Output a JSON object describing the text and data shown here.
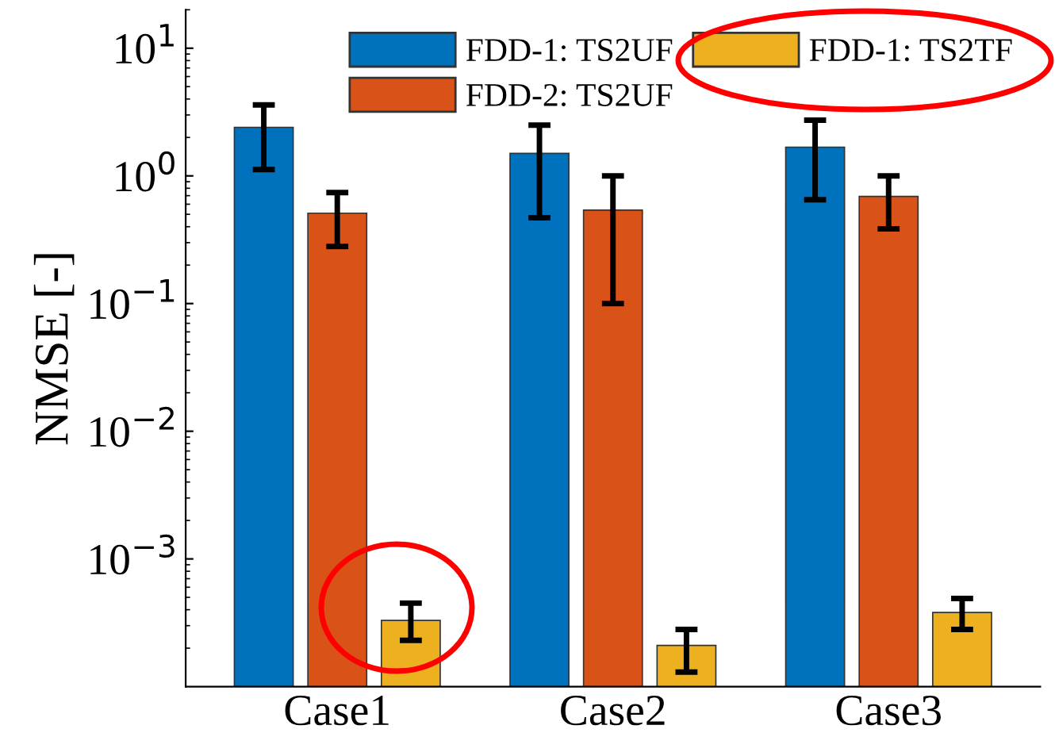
{
  "chart_data": {
    "type": "bar",
    "ylabel": "NMSE [-]",
    "categories": [
      "Case1",
      "Case2",
      "Case3"
    ],
    "series": [
      {
        "name": "FDD-1: TS2UF",
        "color": "#0072bd",
        "values": [
          2.4,
          1.5,
          1.68
        ],
        "errors": [
          [
            1.12,
            3.6
          ],
          [
            0.47,
            2.5
          ],
          [
            0.65,
            2.73
          ]
        ]
      },
      {
        "name": "FDD-2: TS2UF",
        "color": "#d95319",
        "values": [
          0.51,
          0.54,
          0.69
        ],
        "errors": [
          [
            0.28,
            0.74
          ],
          [
            0.1,
            1.0
          ],
          [
            0.385,
            1.0
          ]
        ]
      },
      {
        "name": "FDD-1: TS2TF",
        "color": "#edb120",
        "values": [
          0.00033,
          0.00021,
          0.00038
        ],
        "errors": [
          [
            0.00023,
            0.00045
          ],
          [
            0.00013,
            0.00028
          ],
          [
            0.00028,
            0.00049
          ]
        ]
      }
    ],
    "log": true,
    "ylim": [
      0.0001,
      20
    ],
    "yticks": [
      {
        "value": 0.001,
        "label": "10$^{−3}$"
      },
      {
        "value": 0.01,
        "label": "10$^{−2}$"
      },
      {
        "value": 0.1,
        "label": "10$^{−1}$"
      },
      {
        "value": 1,
        "label": "10$^{0}$"
      },
      {
        "value": 10,
        "label": "10$^{1}$"
      }
    ],
    "grid": false,
    "legend": "top"
  }
}
